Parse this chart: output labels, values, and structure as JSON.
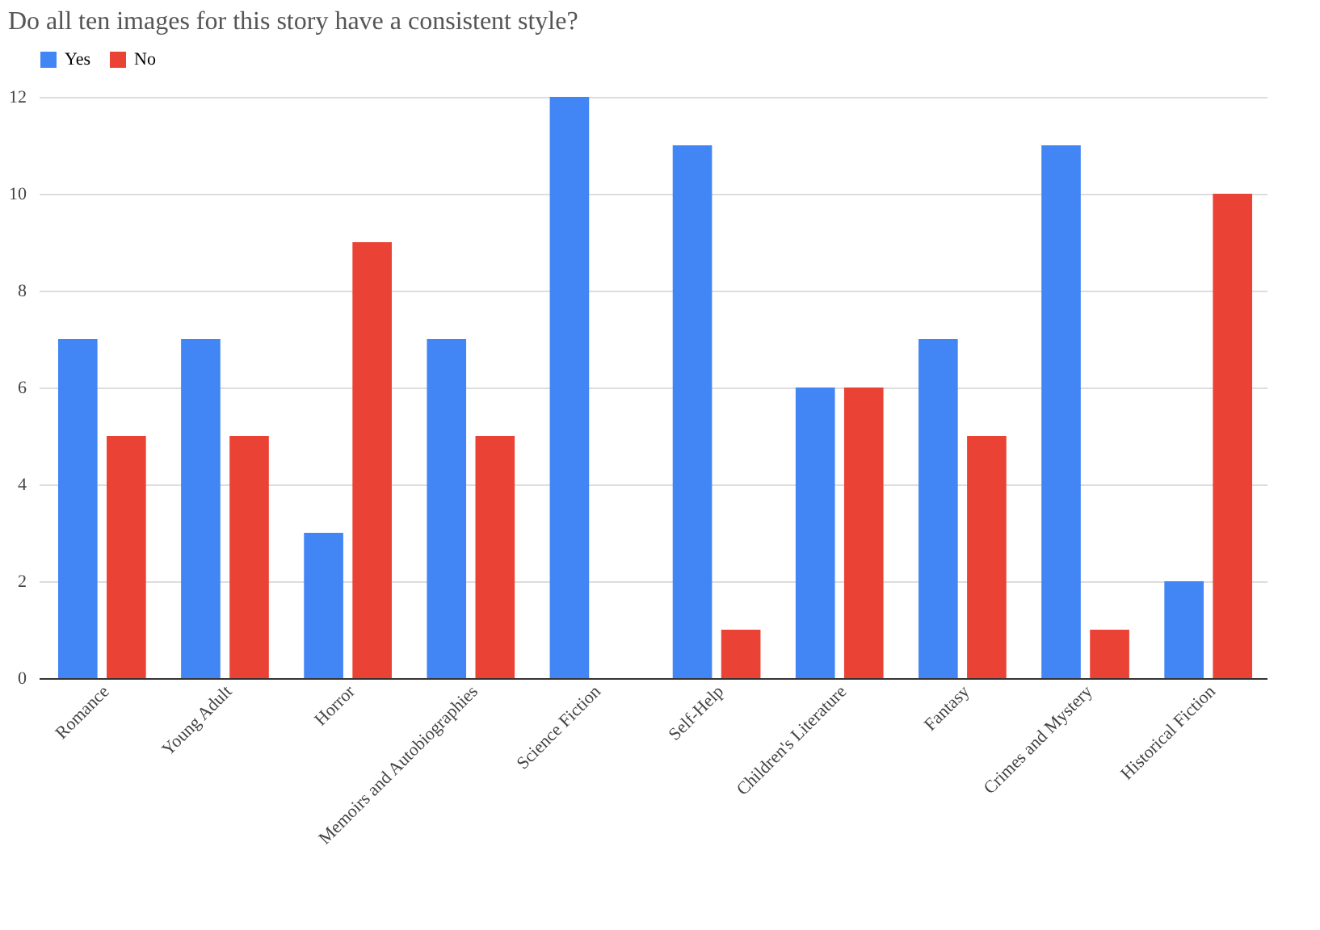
{
  "chart_data": {
    "type": "bar",
    "title": "Do all ten images for this story have a consistent style?",
    "categories": [
      "Romance",
      "Young Adult",
      "Horror",
      "Memoirs and Autobiographies",
      "Science Fiction",
      "Self-Help",
      "Children's Literature",
      "Fantasy",
      "Crimes and Mystery",
      "Historical Fiction"
    ],
    "series": [
      {
        "name": "Yes",
        "color": "#4285f4",
        "values": [
          7,
          7,
          3,
          7,
          12,
          11,
          6,
          7,
          11,
          2
        ]
      },
      {
        "name": "No",
        "color": "#ea4335",
        "values": [
          5,
          5,
          9,
          5,
          0,
          1,
          6,
          5,
          1,
          10
        ]
      }
    ],
    "ylim": [
      0,
      12
    ],
    "yticks": [
      0,
      2,
      4,
      6,
      8,
      10,
      12
    ],
    "grid": "y",
    "legend": "top"
  }
}
